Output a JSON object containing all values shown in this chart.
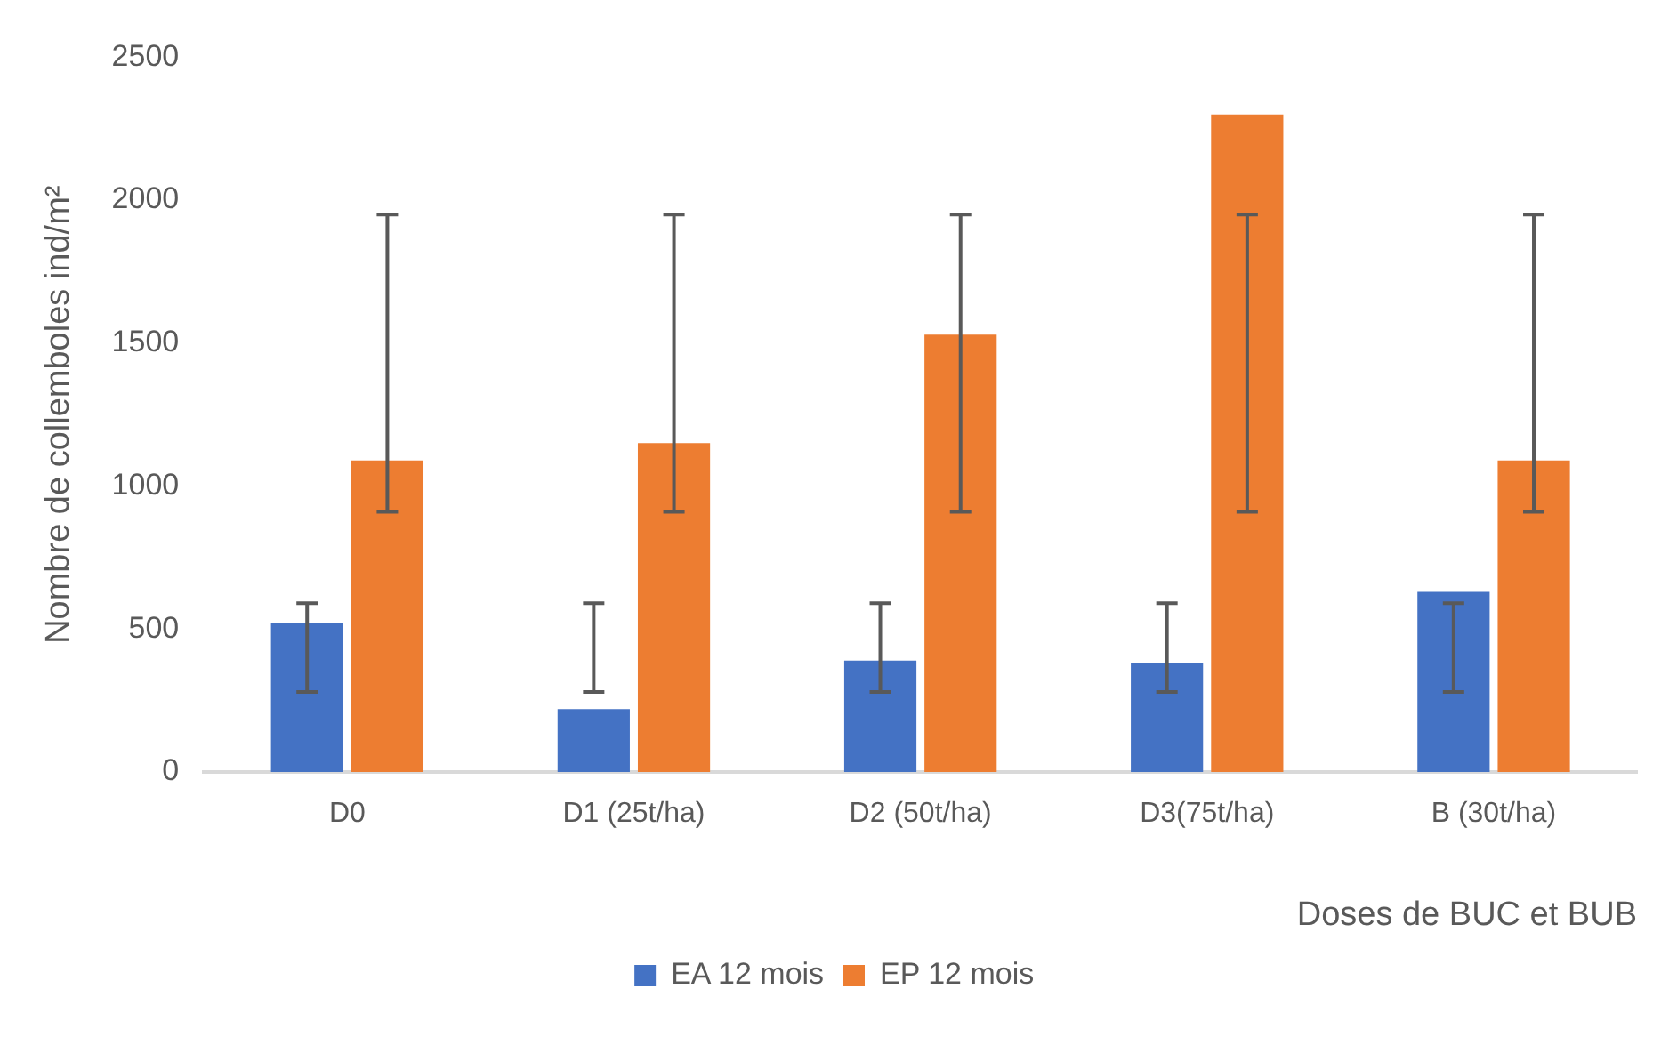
{
  "chart_data": {
    "type": "bar",
    "xlabel": "Doses de BUC et BUB",
    "ylabel": "Nombre de collemboles ind/m²",
    "categories": [
      "D0",
      "D1 (25t/ha)",
      "D2 (50t/ha)",
      "D3(75t/ha)",
      "B (30t/ha)"
    ],
    "series": [
      {
        "name": "EA 12 mois",
        "color": "#4472c4",
        "values": [
          520,
          220,
          390,
          380,
          630
        ],
        "errors": [
          [
            280,
            590
          ],
          [
            280,
            590
          ],
          [
            280,
            590
          ],
          [
            280,
            590
          ],
          [
            280,
            590
          ]
        ]
      },
      {
        "name": "EP 12 mois",
        "color": "#ed7d31",
        "values": [
          1090,
          1150,
          1530,
          2300,
          1090
        ],
        "errors": [
          [
            910,
            1950
          ],
          [
            910,
            1950
          ],
          [
            910,
            1950
          ],
          [
            910,
            1950
          ],
          [
            910,
            1950
          ]
        ]
      }
    ],
    "ylim": [
      0,
      2500
    ],
    "yticks": [
      0,
      500,
      1000,
      1500,
      2000,
      2500
    ],
    "grid": false,
    "legend": "bottom"
  }
}
